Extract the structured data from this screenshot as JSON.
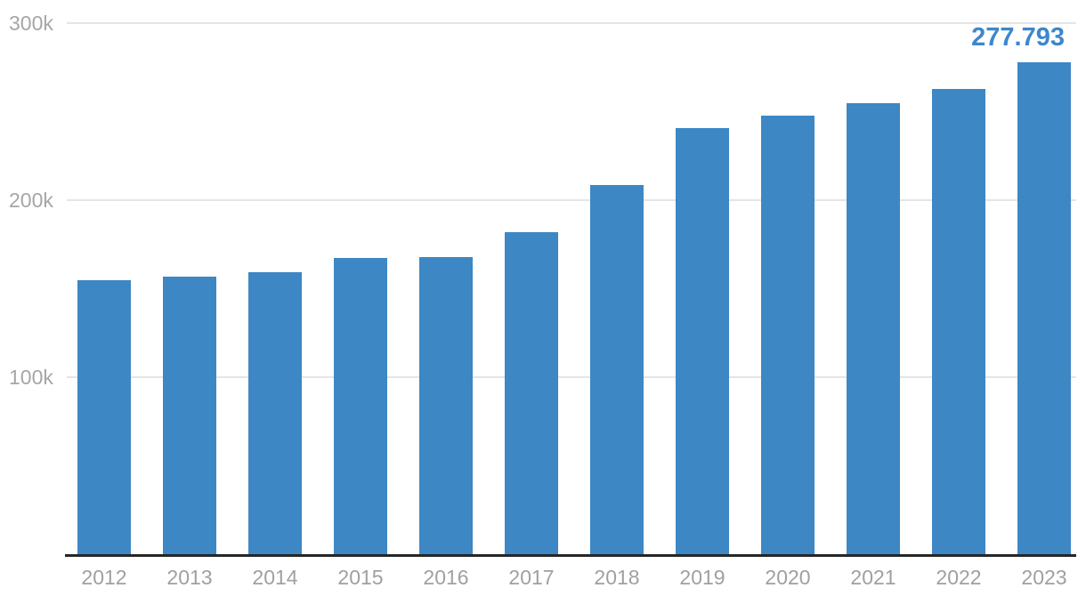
{
  "chart_data": {
    "type": "bar",
    "title": "",
    "xlabel": "",
    "ylabel": "",
    "categories": [
      "2012",
      "2013",
      "2014",
      "2015",
      "2016",
      "2017",
      "2018",
      "2019",
      "2020",
      "2021",
      "2022",
      "2023"
    ],
    "values": [
      154600,
      156800,
      159100,
      167300,
      167800,
      182000,
      208600,
      240700,
      247900,
      254700,
      262800,
      277793
    ],
    "ylim": [
      0,
      300000
    ],
    "yticks": [
      {
        "value": 100000,
        "label": "100k"
      },
      {
        "value": 200000,
        "label": "200k"
      },
      {
        "value": 300000,
        "label": "300k"
      }
    ],
    "grid": "horizontal-only",
    "legend_position": "none",
    "annotation": {
      "category": "2023",
      "value": 277793,
      "text": "277.793"
    },
    "colors": {
      "bar": "#3d87c4",
      "annotation_text": "#3d87cd",
      "axis_line": "#262626",
      "gridline": "#e5e5e5",
      "tick_label": "#a0a0a0"
    }
  }
}
